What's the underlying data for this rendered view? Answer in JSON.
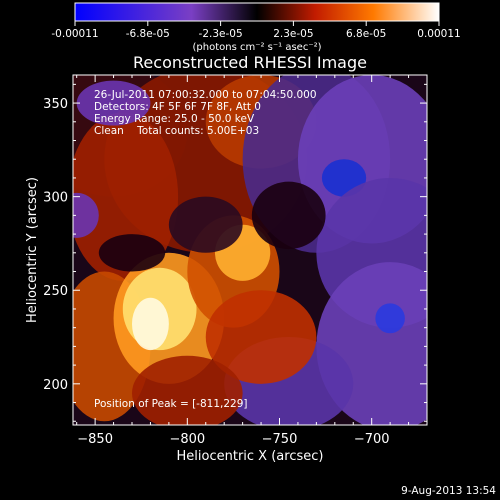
{
  "chart_data": {
    "type": "heatmap",
    "title": "Reconstructed RHESSI Image",
    "xlabel": "Heliocentric X (arcsec)",
    "ylabel": "Heliocentric Y (arcsec)",
    "x_ticks": [
      -850,
      -800,
      -750,
      -700
    ],
    "y_ticks": [
      200,
      250,
      300,
      350
    ],
    "xlim": [
      -862,
      -670
    ],
    "ylim": [
      178,
      365
    ],
    "colorbar": {
      "unit_label": "(photons cm⁻² s⁻¹ asec⁻²)",
      "ticks": [
        "-0.00011",
        "-6.8e-05",
        "-2.3e-05",
        "2.3e-05",
        "6.8e-05",
        "0.00011"
      ],
      "range": [
        -0.00011,
        0.00011
      ]
    },
    "annotations": [
      "26-Jul-2011 07:00:32.000 to 07:04:50.000",
      "Detectors: 4F 5F 6F 7F 8F, Att 0",
      "Energy Range: 25.0 - 50.0 keV",
      "Clean    Total counts: 5.00E+03",
      "Position of Peak = [-811,229]"
    ],
    "peak": {
      "x": -811,
      "y": 229
    },
    "grid": false
  },
  "footer": {
    "timestamp": "9-Aug-2013 13:54"
  },
  "colors": {
    "background": "#000000",
    "foreground": "#ffffff"
  }
}
